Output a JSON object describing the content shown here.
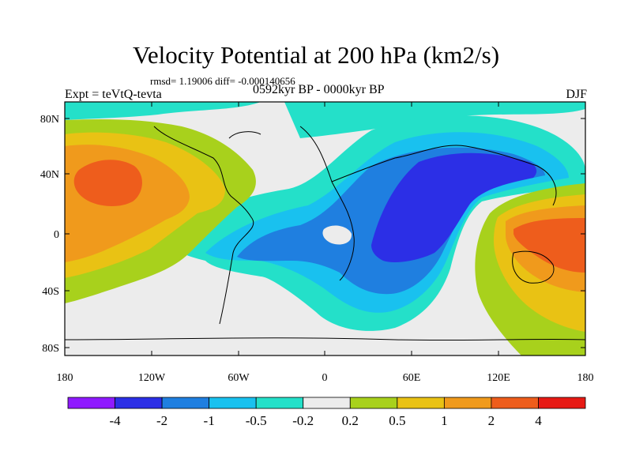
{
  "title": "Velocity Potential at 200 hPa (km2/s)",
  "stats": "rmsd= 1.19006 diff= -0.000140656",
  "left_label": "Expt = teVtQ-tevta",
  "center_label": "0592kyr BP - 0000kyr BP",
  "right_label": "DJF",
  "axes": {
    "lat_ticks": [
      "80N",
      "40N",
      "0",
      "40S",
      "80S"
    ],
    "lon_ticks": [
      "180",
      "120W",
      "60W",
      "0",
      "60E",
      "120E",
      "180"
    ]
  },
  "colorbar": {
    "colors": [
      "#8f1aff",
      "#2c2fe6",
      "#1f7fe0",
      "#19c1ef",
      "#24e0c9",
      "#ececec",
      "#a8d11c",
      "#e9c214",
      "#f09a1c",
      "#ee5d1c",
      "#e71a14"
    ],
    "labels": [
      "-4",
      "-2",
      "-1",
      "-0.5",
      "-0.2",
      "0.2",
      "0.5",
      "1",
      "2",
      "4"
    ]
  }
}
